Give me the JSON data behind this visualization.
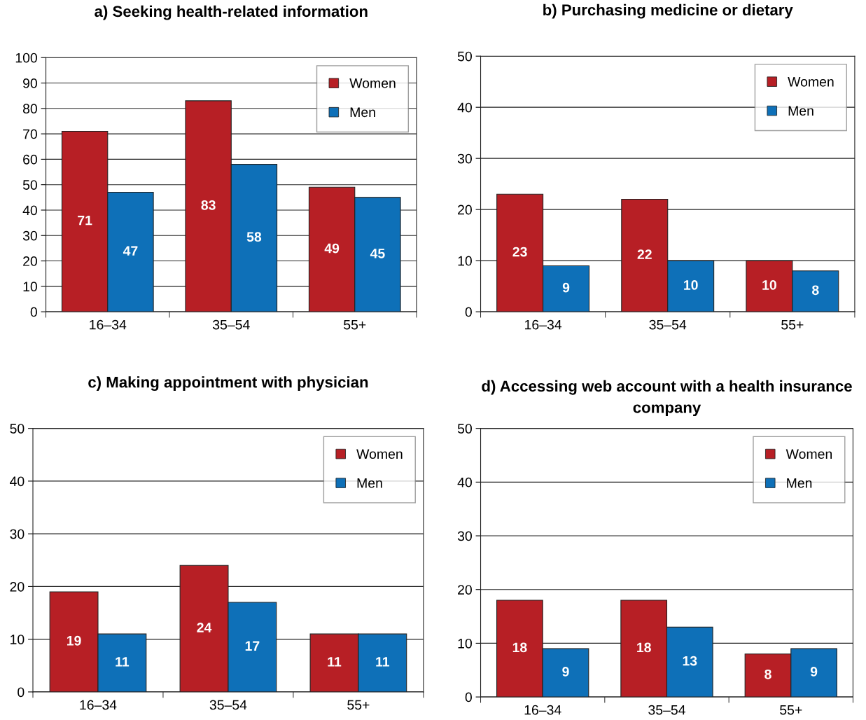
{
  "chart_data": [
    {
      "type": "bar",
      "title": "a) Seeking health-related information",
      "categories": [
        "16–34",
        "35–54",
        "55+"
      ],
      "series": [
        {
          "name": "Women",
          "color": "#b71f25",
          "values": [
            71,
            83,
            49
          ]
        },
        {
          "name": "Men",
          "color": "#0e70b8",
          "values": [
            47,
            58,
            45
          ]
        }
      ],
      "ylim": [
        0,
        100
      ],
      "yticks": [
        0,
        10,
        20,
        30,
        40,
        50,
        60,
        70,
        80,
        90,
        100
      ],
      "grid": "y",
      "legend": "top right",
      "data_labels": true
    },
    {
      "type": "bar",
      "title": "b) Purchasing medicine or dietary",
      "categories": [
        "16–34",
        "35–54",
        "55+"
      ],
      "series": [
        {
          "name": "Women",
          "color": "#b71f25",
          "values": [
            23,
            22,
            10
          ]
        },
        {
          "name": "Men",
          "color": "#0e70b8",
          "values": [
            9,
            10,
            8
          ]
        }
      ],
      "ylim": [
        0,
        50
      ],
      "yticks": [
        0,
        10,
        20,
        30,
        40,
        50
      ],
      "grid": "y",
      "legend": "top right",
      "data_labels": true
    },
    {
      "type": "bar",
      "title": "c) Making appointment with physician",
      "categories": [
        "16–34",
        "35–54",
        "55+"
      ],
      "series": [
        {
          "name": "Women",
          "color": "#b71f25",
          "values": [
            19,
            24,
            11
          ]
        },
        {
          "name": "Men",
          "color": "#0e70b8",
          "values": [
            11,
            17,
            11
          ]
        }
      ],
      "ylim": [
        0,
        50
      ],
      "yticks": [
        0,
        10,
        20,
        30,
        40,
        50
      ],
      "grid": "y",
      "legend": "top right",
      "data_labels": true
    },
    {
      "type": "bar",
      "title": "d) Accessing web account with a health insurance company",
      "categories": [
        "16–34",
        "35–54",
        "55+"
      ],
      "series": [
        {
          "name": "Women",
          "color": "#b71f25",
          "values": [
            18,
            18,
            8
          ]
        },
        {
          "name": "Men",
          "color": "#0e70b8",
          "values": [
            9,
            13,
            9
          ]
        }
      ],
      "ylim": [
        0,
        50
      ],
      "yticks": [
        0,
        10,
        20,
        30,
        40,
        50
      ],
      "grid": "y",
      "legend": "top right",
      "data_labels": true
    }
  ]
}
